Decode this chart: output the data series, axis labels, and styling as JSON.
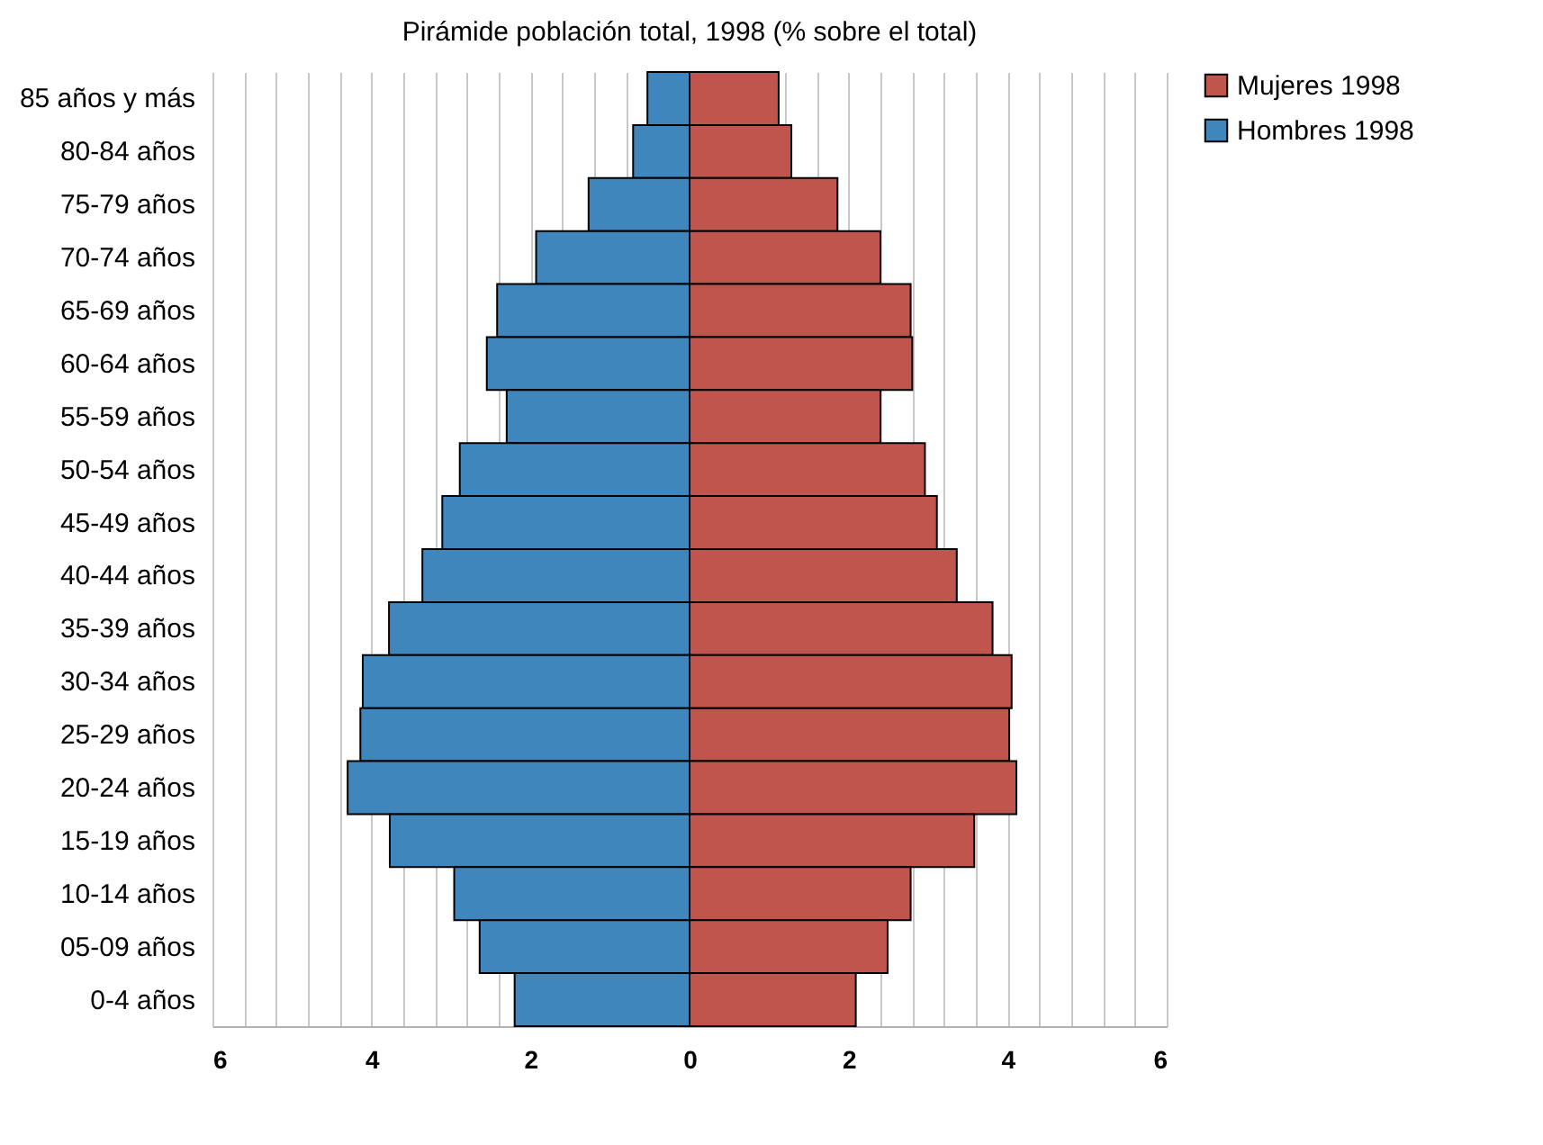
{
  "chart_data": {
    "type": "bar",
    "orientation": "horizontal",
    "title": "Pirámide población total, 1998 (% sobre el total)",
    "categories": [
      "85 años y más",
      "80-84 años",
      "75-79 años",
      "70-74 años",
      "65-69 años",
      "60-64 años",
      "55-59 años",
      "50-54 años",
      "45-49 años",
      "40-44 años",
      "35-39 años",
      "30-34 años",
      "25-29 años",
      "20-24 años",
      "15-19 años",
      "10-14 años",
      "05-09 años",
      "0-4 años"
    ],
    "series": [
      {
        "name": "Mujeres 1998",
        "color": "#c0554e",
        "values": [
          1.12,
          1.28,
          1.86,
          2.4,
          2.78,
          2.8,
          2.4,
          2.96,
          3.11,
          3.36,
          3.81,
          4.05,
          4.02,
          4.11,
          3.58,
          2.78,
          2.49,
          2.09
        ]
      },
      {
        "name": "Hombres 1998",
        "color": "#3f86bc",
        "values": [
          -0.53,
          -0.71,
          -1.27,
          -1.93,
          -2.42,
          -2.55,
          -2.3,
          -2.89,
          -3.11,
          -3.36,
          -3.78,
          -4.11,
          -4.14,
          -4.3,
          -3.77,
          -2.96,
          -2.64,
          -2.2
        ]
      }
    ],
    "xlim": [
      -6,
      6
    ],
    "xticks": [
      {
        "value": -6,
        "label": "6"
      },
      {
        "value": -5.6,
        "label": null
      },
      {
        "value": -5.2,
        "label": null
      },
      {
        "value": -4.8,
        "label": null
      },
      {
        "value": -4.4,
        "label": null
      },
      {
        "value": -4,
        "label": "4"
      },
      {
        "value": -3.6,
        "label": null
      },
      {
        "value": -3.2,
        "label": null
      },
      {
        "value": -2.8,
        "label": null
      },
      {
        "value": -2.4,
        "label": null
      },
      {
        "value": -2,
        "label": "2"
      },
      {
        "value": -1.6,
        "label": null
      },
      {
        "value": -1.2,
        "label": null
      },
      {
        "value": -0.8,
        "label": null
      },
      0,
      {
        "value": 1.2,
        "label": null
      },
      {
        "value": 1.6,
        "label": null
      },
      2,
      {
        "value": 2.4,
        "label": null
      },
      {
        "value": 2.8,
        "label": null
      },
      {
        "value": 3.2,
        "label": null
      },
      {
        "value": 3.6,
        "label": null
      },
      4,
      {
        "value": 4.4,
        "label": null
      },
      {
        "value": 4.8,
        "label": null
      },
      {
        "value": 5.2,
        "label": null
      },
      {
        "value": 5.6,
        "label": null
      },
      6
    ],
    "stacked": true,
    "grid": "x",
    "legend": "right"
  }
}
